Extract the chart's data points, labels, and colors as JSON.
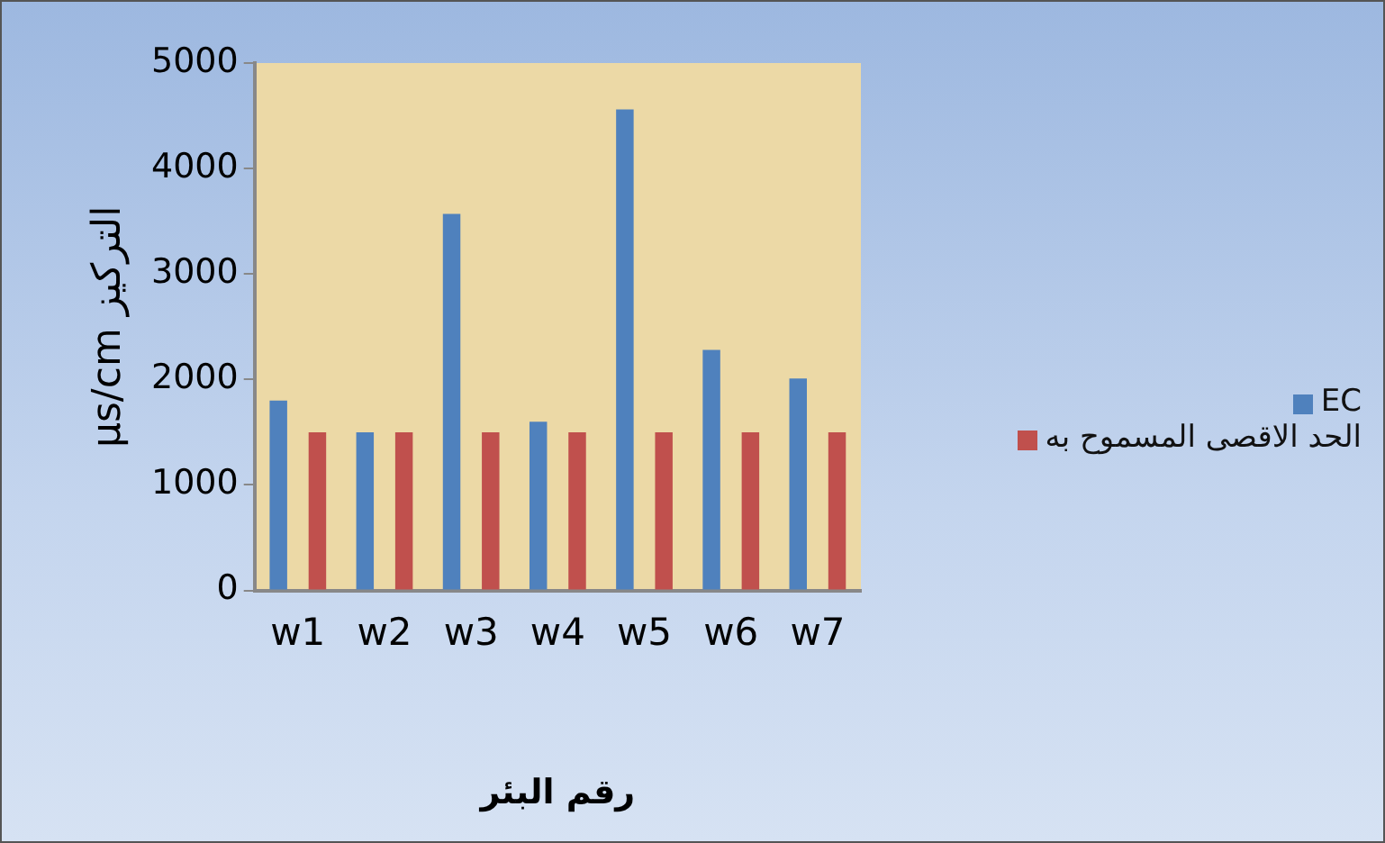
{
  "chart_data": {
    "type": "bar",
    "xlabel": "رقم البئر",
    "ylabel": "التركيز µs/cm",
    "categories": [
      "w1",
      "w2",
      "w3",
      "w4",
      "w5",
      "w6",
      "w7"
    ],
    "series": [
      {
        "name": "EC",
        "color": "#4f81bd",
        "values": [
          1800,
          1500,
          3570,
          1600,
          4560,
          2280,
          2010
        ]
      },
      {
        "name": "الحد الاقصى المسموح به",
        "color": "#c0504d",
        "values": [
          1500,
          1500,
          1500,
          1500,
          1500,
          1500,
          1500
        ]
      }
    ],
    "ylim": [
      0,
      5000
    ],
    "yticks": [
      0,
      1000,
      2000,
      3000,
      4000,
      5000
    ],
    "grid": false,
    "legend": "right"
  }
}
